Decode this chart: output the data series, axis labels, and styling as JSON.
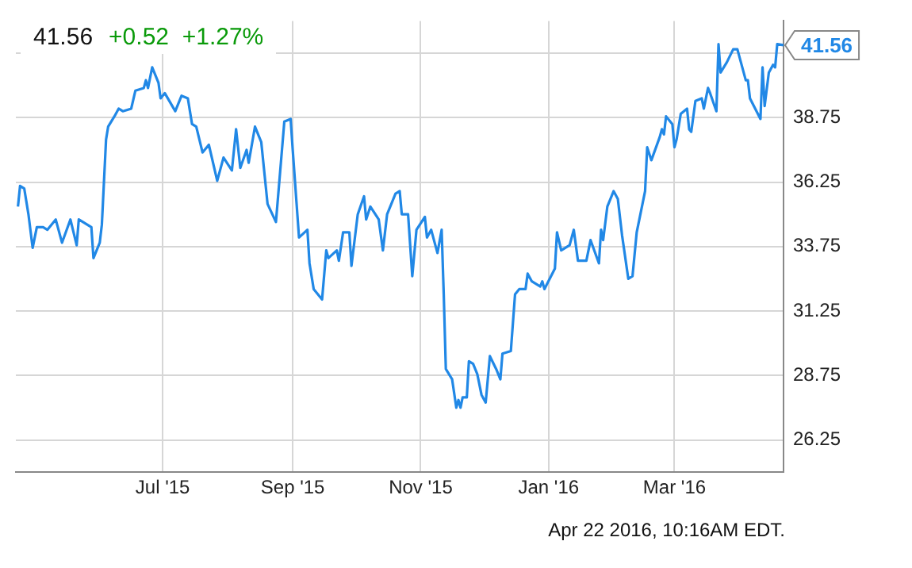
{
  "chart_data": {
    "type": "line",
    "title": "41.56",
    "subtitle": "+0.52  +1.27%",
    "annotations": [
      {
        "text": "41.56",
        "x": "2016-04-22",
        "y": 41.56
      },
      "Apr 22 2016, 10:16AM EDT."
    ],
    "x": [
      "2015-04-23",
      "2015-04-24",
      "2015-04-26",
      "2015-04-28",
      "2015-04-30",
      "2015-05-02",
      "2015-05-05",
      "2015-05-07",
      "2015-05-11",
      "2015-05-14",
      "2015-05-18",
      "2015-05-21",
      "2015-05-22",
      "2015-05-28",
      "2015-05-29",
      "2015-06-01",
      "2015-06-02",
      "2015-06-04",
      "2015-06-05",
      "2015-06-08",
      "2015-06-10",
      "2015-06-12",
      "2015-06-16",
      "2015-06-18",
      "2015-06-22",
      "2015-06-23",
      "2015-06-24",
      "2015-06-26",
      "2015-06-29",
      "2015-06-30",
      "2015-07-02",
      "2015-07-07",
      "2015-07-10",
      "2015-07-13",
      "2015-07-15",
      "2015-07-17",
      "2015-07-20",
      "2015-07-23",
      "2015-07-27",
      "2015-07-30",
      "2015-08-03",
      "2015-08-05",
      "2015-08-07",
      "2015-08-10",
      "2015-08-11",
      "2015-08-14",
      "2015-08-17",
      "2015-08-20",
      "2015-08-24",
      "2015-08-28",
      "2015-08-31",
      "2015-09-01",
      "2015-09-04",
      "2015-09-08",
      "2015-09-09",
      "2015-09-11",
      "2015-09-15",
      "2015-09-17",
      "2015-09-18",
      "2015-09-22",
      "2015-09-23",
      "2015-09-25",
      "2015-09-28",
      "2015-09-29",
      "2015-10-02",
      "2015-10-05",
      "2015-10-06",
      "2015-10-08",
      "2015-10-12",
      "2015-10-14",
      "2015-10-16",
      "2015-10-20",
      "2015-10-22",
      "2015-10-23",
      "2015-10-26",
      "2015-10-28",
      "2015-10-30",
      "2015-11-03",
      "2015-11-04",
      "2015-11-06",
      "2015-11-09",
      "2015-11-11",
      "2015-11-12",
      "2015-11-13",
      "2015-11-16",
      "2015-11-18",
      "2015-11-19",
      "2015-11-20",
      "2015-11-21",
      "2015-11-23",
      "2015-11-24",
      "2015-11-26",
      "2015-11-28",
      "2015-11-30",
      "2015-12-02",
      "2015-12-04",
      "2015-12-07",
      "2015-12-09",
      "2015-12-10",
      "2015-12-14",
      "2015-12-16",
      "2015-12-18",
      "2015-12-21",
      "2015-12-22",
      "2015-12-24",
      "2015-12-28",
      "2015-12-29",
      "2015-12-30",
      "2016-01-04",
      "2016-01-05",
      "2016-01-07",
      "2016-01-11",
      "2016-01-13",
      "2016-01-15",
      "2016-01-19",
      "2016-01-21",
      "2016-01-25",
      "2016-01-26",
      "2016-01-27",
      "2016-01-29",
      "2016-02-01",
      "2016-02-03",
      "2016-02-05",
      "2016-02-08",
      "2016-02-10",
      "2016-02-12",
      "2016-02-16",
      "2016-02-17",
      "2016-02-19",
      "2016-02-23",
      "2016-02-24",
      "2016-02-25",
      "2016-02-26",
      "2016-02-29",
      "2016-03-01",
      "2016-03-02",
      "2016-03-04",
      "2016-03-07",
      "2016-03-08",
      "2016-03-09",
      "2016-03-11",
      "2016-03-14",
      "2016-03-15",
      "2016-03-17",
      "2016-03-18",
      "2016-03-21",
      "2016-03-22",
      "2016-03-23",
      "2016-03-26",
      "2016-03-29",
      "2016-03-31",
      "2016-04-02",
      "2016-04-04",
      "2016-04-05",
      "2016-04-06",
      "2016-04-11",
      "2016-04-12",
      "2016-04-13",
      "2016-04-15",
      "2016-04-17",
      "2016-04-18",
      "2016-04-19",
      "2016-04-22"
    ],
    "series": [
      {
        "color": "#2188e6",
        "values": [
          35.3,
          36.1,
          36.0,
          35.0,
          33.7,
          34.5,
          34.5,
          34.4,
          34.8,
          33.9,
          34.8,
          33.8,
          34.8,
          34.5,
          33.3,
          33.9,
          34.6,
          37.9,
          38.4,
          38.8,
          39.1,
          39.0,
          39.1,
          39.8,
          39.9,
          40.2,
          39.9,
          40.7,
          40.1,
          39.5,
          39.7,
          39.0,
          39.6,
          39.5,
          38.5,
          38.4,
          37.4,
          37.7,
          36.3,
          37.2,
          36.7,
          38.3,
          36.8,
          37.5,
          37.0,
          38.4,
          37.8,
          35.4,
          34.7,
          38.6,
          38.7,
          37.5,
          34.1,
          34.4,
          33.1,
          32.1,
          31.7,
          33.6,
          33.3,
          33.6,
          33.2,
          34.3,
          34.3,
          33.0,
          35.0,
          35.7,
          34.8,
          35.3,
          34.8,
          33.6,
          35.0,
          35.8,
          35.9,
          35.0,
          35.0,
          32.6,
          34.4,
          34.9,
          34.1,
          34.4,
          33.5,
          34.4,
          31.9,
          29.0,
          28.6,
          27.5,
          27.8,
          27.5,
          27.9,
          27.9,
          29.3,
          29.2,
          28.8,
          28.0,
          27.7,
          29.5,
          29.0,
          28.6,
          29.6,
          29.7,
          31.9,
          32.1,
          32.1,
          32.7,
          32.4,
          32.2,
          32.4,
          32.1,
          32.9,
          34.3,
          33.6,
          33.8,
          34.4,
          33.2,
          33.2,
          34.0,
          33.1,
          34.4,
          34.0,
          35.3,
          35.9,
          35.6,
          34.2,
          32.5,
          32.6,
          34.3,
          35.9,
          37.6,
          37.1,
          38.0,
          38.3,
          38.1,
          38.8,
          38.5,
          37.6,
          37.9,
          38.9,
          39.1,
          38.3,
          38.2,
          39.4,
          39.5,
          39.1,
          39.9,
          39.7,
          39.0,
          41.6,
          40.5,
          40.9,
          41.4,
          41.4,
          40.8,
          40.2,
          40.2,
          39.5,
          38.7,
          40.7,
          39.2,
          40.5,
          40.8,
          40.7,
          41.6,
          41.56
        ]
      }
    ],
    "xlim": [
      "2015-04-22",
      "2016-04-22"
    ],
    "xticks": [
      {
        "value": "2015-07-01",
        "label": "Jul '15"
      },
      {
        "value": "2015-09-01",
        "label": "Sep '15"
      },
      {
        "value": "2015-11-01",
        "label": "Nov '15"
      },
      {
        "value": "2016-01-01",
        "label": "Jan '16"
      },
      {
        "value": "2016-03-01",
        "label": "Mar '16"
      }
    ],
    "ylim": [
      25,
      42.5
    ],
    "yticks": [
      26.25,
      28.75,
      31.25,
      33.75,
      36.25,
      38.75,
      {
        "value": 41.25,
        "label": null
      }
    ],
    "grid": true,
    "legend": false,
    "marker": "none",
    "line_style": "solid"
  }
}
